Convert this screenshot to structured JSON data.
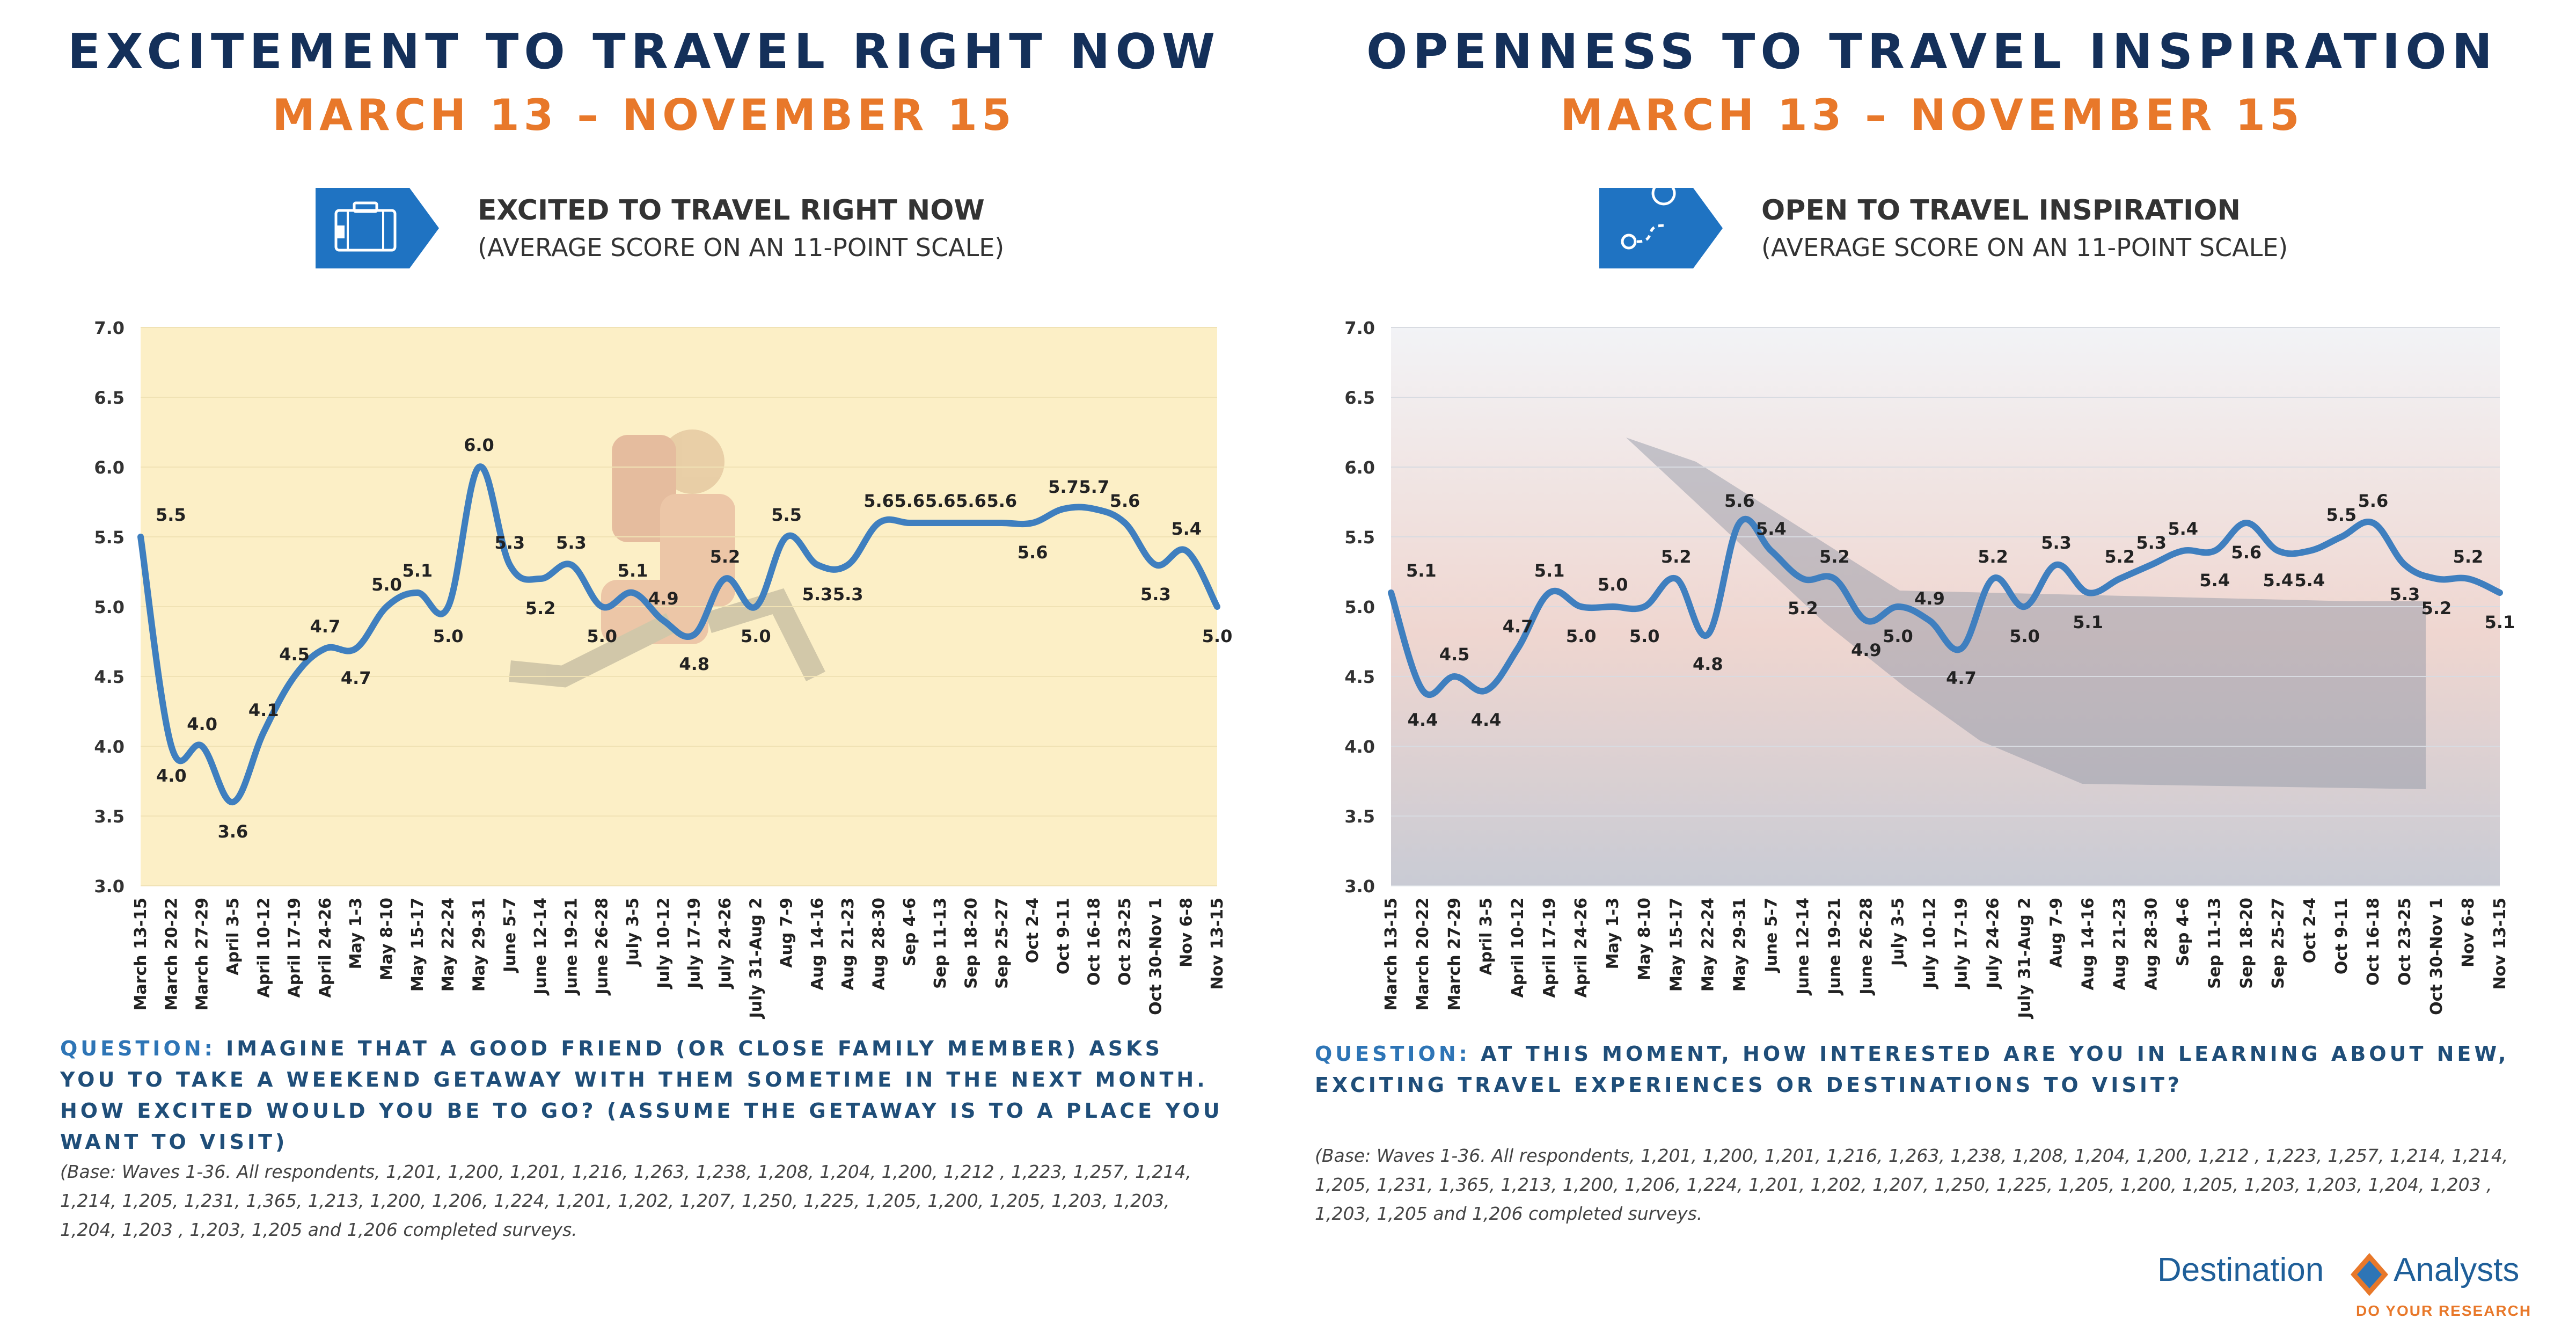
{
  "left": {
    "title": "EXCITEMENT TO TRAVEL RIGHT NOW",
    "subtitle": "MARCH 13 – NOVEMBER 15",
    "icon": "suitcase-icon",
    "heading": "EXCITED TO TRAVEL RIGHT NOW",
    "subheading": "(AVERAGE SCORE ON AN 11-POINT SCALE)",
    "question_label": "QUESTION:",
    "question_text": "IMAGINE THAT A GOOD FRIEND (OR CLOSE FAMILY MEMBER) ASKS YOU TO TAKE A WEEKEND GETAWAY WITH THEM SOMETIME IN THE NEXT MONTH. HOW EXCITED WOULD YOU BE TO GO? (ASSUME THE GETAWAY IS TO A PLACE YOU WANT TO VISIT)",
    "base": "(Base: Waves 1-36. All respondents, 1,201, 1,200, 1,201, 1,216, 1,263, 1,238, 1,208, 1,204, 1,200, 1,212 , 1,223, 1,257, 1,214, 1,214, 1,205, 1,231, 1,365, 1,213, 1,200, 1,206, 1,224, 1,201, 1,202, 1,207, 1,250, 1,225, 1,205, 1,200, 1,205, 1,203, 1,203, 1,204, 1,203 , 1,203, 1,205 and 1,206 completed surveys."
  },
  "right": {
    "title": "OPENNESS TO TRAVEL INSPIRATION",
    "subtitle": "MARCH 13 – NOVEMBER 15",
    "icon": "route-map-icon",
    "heading": "OPEN TO TRAVEL INSPIRATION",
    "subheading": "(AVERAGE SCORE ON AN 11-POINT SCALE)",
    "question_label": "QUESTION:",
    "question_text": "AT THIS MOMENT, HOW INTERESTED ARE YOU IN LEARNING ABOUT NEW, EXCITING TRAVEL EXPERIENCES OR DESTINATIONS TO VISIT?",
    "base": "(Base: Waves 1-36. All respondents, 1,201, 1,200, 1,201, 1,216, 1,263, 1,238, 1,208, 1,204, 1,200, 1,212 , 1,223, 1,257, 1,214, 1,214, 1,205, 1,231, 1,365, 1,213, 1,200, 1,206, 1,224, 1,201, 1,202, 1,207, 1,250, 1,225, 1,205, 1,200, 1,205, 1,203, 1,203, 1,204, 1,203 , 1,203, 1,205 and 1,206 completed surveys."
  },
  "logo": {
    "name_left": "Destination",
    "name_right": "Analysts",
    "tagline": "DO YOUR RESEARCH"
  },
  "colors": {
    "title": "#14305a",
    "subtitle": "#e8782a",
    "line": "#3f7fbf",
    "icon_bg": "#1f73c2"
  },
  "chart_data": [
    {
      "type": "line",
      "ylim": [
        3.0,
        7.0
      ],
      "yticks": [
        "3.0",
        "3.5",
        "4.0",
        "4.5",
        "5.0",
        "5.5",
        "6.0",
        "6.5",
        "7.0"
      ],
      "x_labels": [
        "March 13-15",
        "March 20-22",
        "March 27-29",
        "April 3-5",
        "April 10-12",
        "April 17-19",
        "April 24-26",
        "May 1-3",
        "May 8-10",
        "May 15-17",
        "May 22-24",
        "May 29-31",
        "June 5-7",
        "June 12-14",
        "June 19-21",
        "June 26-28",
        "July 3-5",
        "July 10-12",
        "July 17-19",
        "July 24-26",
        "July 31-Aug 2",
        "Aug 7-9",
        "Aug 14-16",
        "Aug 21-23",
        "Aug 28-30",
        "Sep 4-6",
        "Sep 11-13",
        "Sep 18-20",
        "Sep 25-27",
        "Oct 2-4",
        "Oct 9-11",
        "Oct 16-18",
        "Oct 23-25",
        "Oct 30-Nov 1",
        "Nov 6-8",
        "Nov 13-15"
      ],
      "series": [
        {
          "values": [
            5.5,
            4.0,
            4.0,
            3.6,
            4.1,
            4.5,
            4.7,
            4.7,
            5.0,
            5.1,
            5.0,
            6.0,
            5.3,
            5.2,
            5.3,
            5.0,
            5.1,
            4.9,
            4.8,
            5.2,
            5.0,
            5.5,
            5.3,
            5.3,
            5.6,
            5.6,
            5.6,
            5.6,
            5.6,
            5.6,
            5.7,
            5.7,
            5.6,
            5.3,
            5.4,
            5.0
          ]
        }
      ]
    },
    {
      "type": "line",
      "ylim": [
        3.0,
        7.0
      ],
      "yticks": [
        "3.0",
        "3.5",
        "4.0",
        "4.5",
        "5.0",
        "5.5",
        "6.0",
        "6.5",
        "7.0"
      ],
      "x_labels": [
        "March 13-15",
        "March 20-22",
        "March 27-29",
        "April 3-5",
        "April 10-12",
        "April 17-19",
        "April 24-26",
        "May 1-3",
        "May 8-10",
        "May 15-17",
        "May 22-24",
        "May 29-31",
        "June 5-7",
        "June 12-14",
        "June 19-21",
        "June 26-28",
        "July 3-5",
        "July 10-12",
        "July 17-19",
        "July 24-26",
        "July 31-Aug 2",
        "Aug 7-9",
        "Aug 14-16",
        "Aug 21-23",
        "Aug 28-30",
        "Sep 4-6",
        "Sep 11-13",
        "Sep 18-20",
        "Sep 25-27",
        "Oct 2-4",
        "Oct 9-11",
        "Oct 16-18",
        "Oct 23-25",
        "Oct 30-Nov 1",
        "Nov 6-8",
        "Nov 13-15"
      ],
      "series": [
        {
          "values": [
            5.1,
            4.4,
            4.5,
            4.4,
            4.7,
            5.1,
            5.0,
            5.0,
            5.0,
            5.2,
            4.8,
            5.6,
            5.4,
            5.2,
            5.2,
            4.9,
            5.0,
            4.9,
            4.7,
            5.2,
            5.0,
            5.3,
            5.1,
            5.2,
            5.3,
            5.4,
            5.4,
            5.6,
            5.4,
            5.4,
            5.5,
            5.6,
            5.3,
            5.2,
            5.2,
            5.1
          ]
        }
      ]
    }
  ]
}
